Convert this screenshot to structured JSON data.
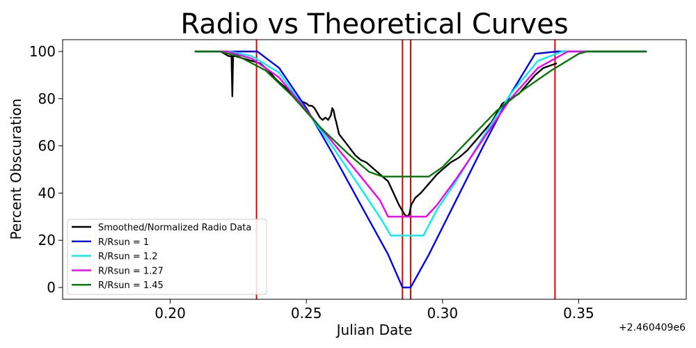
{
  "chart_data": {
    "type": "line",
    "title": "Radio vs Theoretical Curves",
    "xlabel": "Julian Date",
    "ylabel": "Percent Obscuration",
    "x_offset_label": "+2.460409e6",
    "xlim": [
      0.1605,
      0.3895
    ],
    "ylim": [
      -5,
      105
    ],
    "xticks": [
      0.2,
      0.25,
      0.3,
      0.35
    ],
    "xtick_labels": [
      "0.20",
      "0.25",
      "0.30",
      "0.35"
    ],
    "yticks": [
      0,
      20,
      40,
      60,
      80,
      100
    ],
    "ytick_labels": [
      "0",
      "20",
      "40",
      "60",
      "80",
      "100"
    ],
    "grid": false,
    "legend_position": "lower-left",
    "vertical_lines": {
      "color": "#dd0000",
      "x": [
        0.2317,
        0.2853,
        0.2883,
        0.3413
      ]
    },
    "series": [
      {
        "name": "Smoothed/Normalized Radio Data",
        "color": "#000000",
        "x": [
          0.2185,
          0.22,
          0.2215,
          0.2225,
          0.2228,
          0.2231,
          0.224,
          0.227,
          0.23,
          0.233,
          0.236,
          0.239,
          0.242,
          0.245,
          0.248,
          0.25,
          0.251,
          0.252,
          0.253,
          0.254,
          0.255,
          0.256,
          0.257,
          0.258,
          0.259,
          0.2595,
          0.26,
          0.2605,
          0.261,
          0.262,
          0.264,
          0.266,
          0.268,
          0.27,
          0.272,
          0.274,
          0.276,
          0.278,
          0.28,
          0.282,
          0.284,
          0.286,
          0.287,
          0.2878,
          0.2885,
          0.29,
          0.292,
          0.295,
          0.298,
          0.3,
          0.303,
          0.306,
          0.309,
          0.312,
          0.315,
          0.318,
          0.32,
          0.322,
          0.325,
          0.328,
          0.331,
          0.334,
          0.337,
          0.3395,
          0.342
        ],
        "y": [
          100,
          99,
          98,
          98,
          81,
          98,
          98,
          97,
          96,
          95,
          92,
          88,
          85,
          82,
          79,
          78,
          77,
          77,
          76,
          74,
          72,
          71,
          72,
          71,
          73,
          76,
          75,
          72,
          70,
          65,
          62,
          59,
          56,
          54,
          53,
          51,
          49,
          47,
          45,
          40,
          35,
          31,
          30,
          31,
          35,
          38,
          40,
          44,
          48,
          50,
          53,
          55,
          58,
          62,
          66,
          70,
          74,
          78,
          80,
          82,
          86,
          90,
          93,
          94,
          95
        ]
      },
      {
        "name": "R/Rsun = 1",
        "color": "#0000ee",
        "x": [
          0.209,
          0.225,
          0.232,
          0.24,
          0.25,
          0.26,
          0.27,
          0.28,
          0.2853,
          0.2883,
          0.295,
          0.305,
          0.315,
          0.325,
          0.334,
          0.342,
          0.35,
          0.375
        ],
        "y": [
          100,
          100,
          100,
          93,
          76,
          56,
          35,
          14,
          0,
          0,
          14,
          37,
          60,
          82,
          99,
          100,
          100,
          100
        ]
      },
      {
        "name": "R/Rsun = 1.2",
        "color": "#00eeee",
        "x": [
          0.209,
          0.222,
          0.23,
          0.24,
          0.25,
          0.26,
          0.27,
          0.278,
          0.281,
          0.293,
          0.298,
          0.305,
          0.315,
          0.325,
          0.335,
          0.344,
          0.375
        ],
        "y": [
          100,
          100,
          98,
          91,
          75,
          59,
          42,
          28,
          22,
          22,
          33,
          45,
          64,
          82,
          96,
          100,
          100
        ]
      },
      {
        "name": "R/Rsun = 1.27",
        "color": "#ee00ee",
        "x": [
          0.209,
          0.221,
          0.23,
          0.24,
          0.25,
          0.26,
          0.27,
          0.277,
          0.28,
          0.294,
          0.298,
          0.305,
          0.315,
          0.325,
          0.335,
          0.346,
          0.375
        ],
        "y": [
          100,
          100,
          97,
          89,
          75,
          61,
          47,
          37,
          30,
          30,
          35,
          46,
          63,
          80,
          93,
          100,
          100
        ]
      },
      {
        "name": "R/Rsun = 1.45",
        "color": "#007700",
        "x": [
          0.209,
          0.218,
          0.225,
          0.235,
          0.245,
          0.255,
          0.265,
          0.273,
          0.278,
          0.295,
          0.3,
          0.31,
          0.32,
          0.33,
          0.34,
          0.35,
          0.353,
          0.375
        ],
        "y": [
          100,
          100,
          98,
          92,
          81,
          68,
          57,
          49,
          47,
          47,
          51,
          63,
          75,
          84,
          92,
          99,
          100,
          100
        ]
      }
    ]
  }
}
